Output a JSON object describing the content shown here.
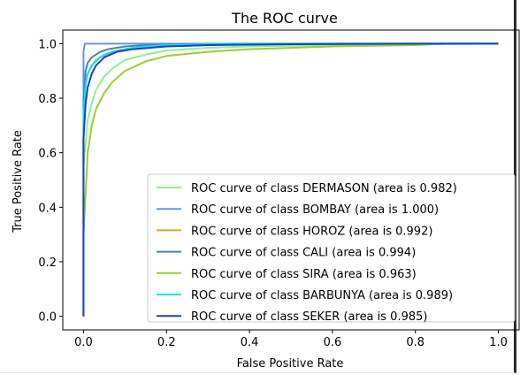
{
  "chart_data": {
    "type": "line",
    "title": "The ROC curve",
    "xlabel": "False Positive Rate",
    "ylabel": "True Positive Rate",
    "xlim": [
      -0.05,
      1.05
    ],
    "ylim": [
      -0.05,
      1.05
    ],
    "xticks": [
      0.0,
      0.2,
      0.4,
      0.6,
      0.8,
      1.0
    ],
    "xtick_labels": [
      "0.0",
      "0.2",
      "0.4",
      "0.6",
      "0.8",
      "1.0"
    ],
    "yticks": [
      0.0,
      0.2,
      0.4,
      0.6,
      0.8,
      1.0
    ],
    "ytick_labels": [
      "0.0",
      "0.2",
      "0.4",
      "0.6",
      "0.8",
      "1.0"
    ],
    "grid": false,
    "legend_position": "lower right",
    "series": [
      {
        "name": "ROC curve of class DERMASON (area is 0.982)",
        "color": "#90ee90",
        "x": [
          0,
          0,
          0.01,
          0.02,
          0.03,
          0.05,
          0.07,
          0.1,
          0.15,
          0.2,
          0.3,
          0.4,
          0.6,
          0.8,
          1.0
        ],
        "y": [
          0,
          0.55,
          0.72,
          0.78,
          0.83,
          0.88,
          0.91,
          0.94,
          0.96,
          0.975,
          0.985,
          0.99,
          0.995,
          0.998,
          1.0
        ]
      },
      {
        "name": "ROC curve of class BOMBAY (area is 1.000)",
        "color": "#6495ed",
        "x": [
          0,
          0,
          0.003,
          1.0
        ],
        "y": [
          0,
          0.97,
          1.0,
          1.0
        ]
      },
      {
        "name": "ROC curve of class HOROZ (area is 0.992)",
        "color": "#daa520",
        "x": [
          0,
          0,
          0.005,
          0.01,
          0.02,
          0.03,
          0.05,
          0.08,
          0.12,
          0.2,
          0.3,
          0.5,
          1.0
        ],
        "y": [
          0,
          0.7,
          0.85,
          0.89,
          0.92,
          0.94,
          0.96,
          0.975,
          0.985,
          0.99,
          0.995,
          0.998,
          1.0
        ]
      },
      {
        "name": "ROC curve of class CALI (area is 0.994)",
        "color": "#4682b4",
        "x": [
          0,
          0,
          0.005,
          0.01,
          0.02,
          0.04,
          0.06,
          0.1,
          0.15,
          0.25,
          0.4,
          1.0
        ],
        "y": [
          0,
          0.8,
          0.9,
          0.93,
          0.95,
          0.97,
          0.98,
          0.99,
          0.995,
          0.998,
          1.0,
          1.0
        ]
      },
      {
        "name": "ROC curve of class SIRA (area is 0.963)",
        "color": "#9acd32",
        "x": [
          0,
          0,
          0.005,
          0.01,
          0.02,
          0.03,
          0.05,
          0.07,
          0.1,
          0.15,
          0.2,
          0.3,
          0.4,
          0.6,
          0.8,
          0.88,
          1.0
        ],
        "y": [
          0,
          0.3,
          0.45,
          0.6,
          0.7,
          0.76,
          0.82,
          0.86,
          0.9,
          0.935,
          0.955,
          0.97,
          0.98,
          0.99,
          0.995,
          1.0,
          1.0
        ]
      },
      {
        "name": "ROC curve of class BARBUNYA (area is 0.989)",
        "color": "#00e5ee",
        "x": [
          0,
          0,
          0.005,
          0.01,
          0.02,
          0.04,
          0.06,
          0.1,
          0.15,
          0.2,
          0.35,
          1.0
        ],
        "y": [
          0,
          0.75,
          0.85,
          0.89,
          0.92,
          0.95,
          0.965,
          0.98,
          0.99,
          0.995,
          1.0,
          1.0
        ]
      },
      {
        "name": "ROC curve of class SEKER (area is 0.985)",
        "color": "#1f3fbf",
        "x": [
          0,
          0,
          0.005,
          0.01,
          0.02,
          0.03,
          0.05,
          0.08,
          0.12,
          0.2,
          0.3,
          0.5,
          0.8,
          1.0
        ],
        "y": [
          0,
          0.65,
          0.78,
          0.84,
          0.89,
          0.92,
          0.95,
          0.97,
          0.98,
          0.99,
          0.995,
          0.998,
          1.0,
          1.0
        ]
      }
    ]
  }
}
